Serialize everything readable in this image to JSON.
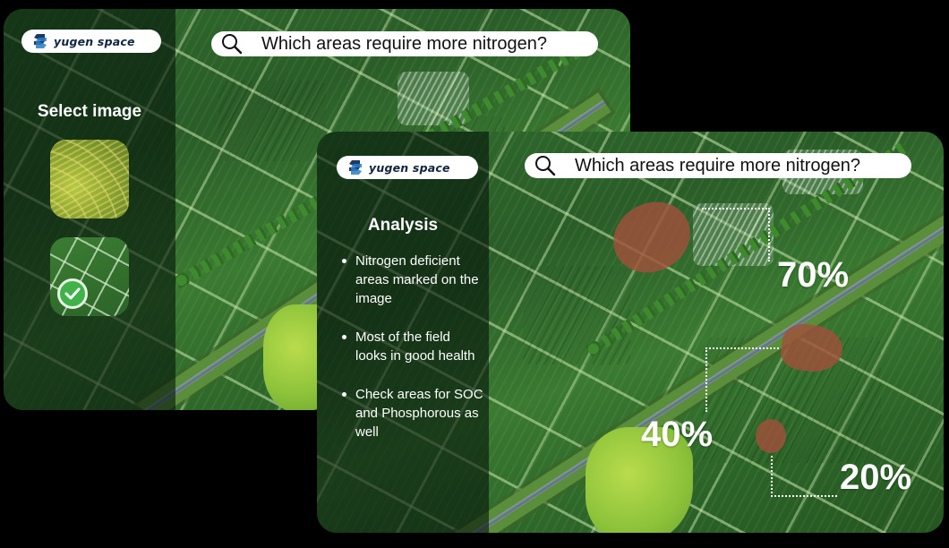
{
  "brand": {
    "name": "yugen space"
  },
  "back_screen": {
    "search_query": "Which areas require more nitrogen?",
    "sidebar_title": "Select image",
    "thumbnails": [
      {
        "name": "terraced-field-thumbnail",
        "selected": false
      },
      {
        "name": "green-field-grid-thumbnail",
        "selected": true
      }
    ]
  },
  "front_screen": {
    "search_query": "Which areas require more nitrogen?",
    "sidebar_title": "Analysis",
    "analysis_points": [
      "Nitrogen deficient areas marked on the image",
      "Most of the field looks in good health",
      "Check areas for SOC and Phosphorous as well"
    ],
    "deficiency_zones": [
      {
        "label": "70%"
      },
      {
        "label": "40%"
      },
      {
        "label": "20%"
      }
    ]
  },
  "colors": {
    "deficiency_marker": "#a0503c",
    "selected_check": "#3fb34a",
    "field_green": "#2f6a2c"
  }
}
